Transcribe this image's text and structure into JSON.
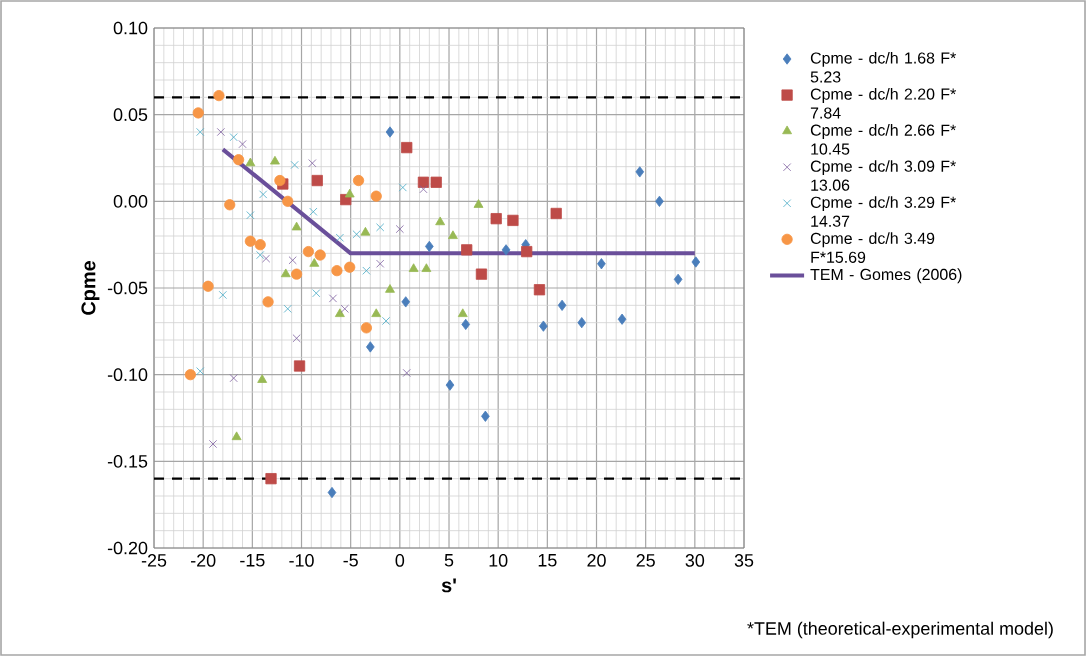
{
  "chart_data": {
    "type": "scatter",
    "xlabel": "s'",
    "ylabel": "Cpme",
    "xlim": [
      -25,
      35
    ],
    "ylim": [
      -0.2,
      0.1
    ],
    "xticks": [
      -25,
      -20,
      -15,
      -10,
      -5,
      0,
      5,
      10,
      15,
      20,
      25,
      30,
      35
    ],
    "yticks": [
      {
        "value": -0.2,
        "label": "-0.20"
      },
      -0.15,
      {
        "value": -0.1,
        "label": "-0.10"
      },
      -0.05,
      {
        "value": 0,
        "label": "0.00"
      },
      0.05,
      {
        "value": 0.1,
        "label": "0.10"
      }
    ],
    "grid": true,
    "legend": "right",
    "annotations": [
      "*TEM (theoretical-experimental model)"
    ],
    "ref_lines": [
      {
        "axis": "y",
        "value": 0.06,
        "color": "#000000",
        "line_style": "dashed"
      },
      {
        "axis": "y",
        "value": -0.16,
        "color": "#000000",
        "line_style": "dashed"
      }
    ],
    "series": [
      {
        "name": "Cpme - dc/h 1.68 F* 5.23",
        "color": "#4a7ebb",
        "marker": "diamond",
        "x": [
          -1.0,
          3.0,
          0.6,
          -3.0,
          5.1,
          8.7,
          10.8,
          12.8,
          14.6,
          16.5,
          18.5,
          20.5,
          22.6,
          24.4,
          26.4,
          28.3,
          30.1,
          -6.9,
          6.7
        ],
        "values": [
          0.04,
          -0.026,
          -0.058,
          -0.084,
          -0.106,
          -0.124,
          -0.028,
          -0.025,
          -0.072,
          -0.06,
          -0.07,
          -0.036,
          -0.068,
          0.017,
          0.0,
          -0.045,
          -0.035,
          -0.168,
          -0.071
        ]
      },
      {
        "name": "Cpme - dc/h 2.20 F* 7.84",
        "color": "#be4b48",
        "marker": "square",
        "x": [
          -13.1,
          -10.2,
          -11.9,
          -8.4,
          -5.5,
          0.7,
          2.4,
          3.7,
          6.8,
          8.3,
          9.8,
          11.5,
          12.9,
          14.2,
          15.9
        ],
        "values": [
          -0.16,
          -0.095,
          0.01,
          0.012,
          0.001,
          0.031,
          0.011,
          0.011,
          -0.028,
          -0.042,
          -0.01,
          -0.011,
          -0.029,
          -0.051,
          -0.007
        ]
      },
      {
        "name": "Cpme - dc/h 2.66 F* 10.45",
        "color": "#98b954",
        "marker": "triangle",
        "x": [
          -15.2,
          -12.7,
          -10.5,
          -11.6,
          -14.0,
          -16.6,
          -8.7,
          -6.1,
          -5.1,
          8.0,
          4.1,
          5.4,
          1.4,
          2.7,
          -1.0,
          -2.4,
          6.4,
          -3.5
        ],
        "values": [
          0.022,
          0.023,
          -0.015,
          -0.042,
          -0.103,
          -0.136,
          -0.036,
          -0.065,
          0.004,
          -0.002,
          -0.012,
          -0.02,
          -0.039,
          -0.039,
          -0.051,
          -0.065,
          -0.065,
          -0.018
        ]
      },
      {
        "name": "Cpme - dc/h 3.09 F* 13.06",
        "color": "#7d5fa0",
        "marker": "cross",
        "x": [
          -18.2,
          -16.0,
          -8.9,
          -13.6,
          -10.9,
          -6.8,
          -5.6,
          -10.5,
          -16.9,
          -19.0,
          2.4,
          0.0,
          0.7,
          -2.0
        ],
        "values": [
          0.04,
          0.033,
          0.022,
          -0.033,
          -0.034,
          -0.056,
          -0.062,
          -0.079,
          -0.102,
          -0.14,
          0.007,
          -0.016,
          -0.099,
          -0.036
        ]
      },
      {
        "name": "Cpme - dc/h 3.29 F* 14.37",
        "color": "#46aac5",
        "marker": "cross",
        "x": [
          -20.3,
          -18.0,
          -20.3,
          -16.9,
          -15.2,
          -13.9,
          -10.7,
          -11.4,
          -14.2,
          -8.5,
          -8.8,
          -6.1,
          -4.4,
          0.3,
          -2.0,
          -3.4,
          -1.4
        ],
        "values": [
          -0.098,
          -0.054,
          0.04,
          0.037,
          -0.008,
          0.004,
          0.021,
          -0.062,
          -0.031,
          -0.053,
          -0.006,
          -0.021,
          -0.019,
          0.008,
          -0.015,
          -0.04,
          -0.069
        ]
      },
      {
        "name": "Cpme - dc/h 3.49 F*15.69",
        "color": "#f79646",
        "marker": "circle",
        "x": [
          -18.4,
          -20.5,
          -16.4,
          -17.3,
          -12.2,
          -11.4,
          -4.2,
          -2.4,
          -15.2,
          -14.2,
          -9.3,
          -8.1,
          -10.5,
          -13.4,
          -19.5,
          -6.4,
          -5.1,
          -3.4,
          -21.3
        ],
        "values": [
          0.061,
          0.051,
          0.024,
          -0.002,
          0.012,
          0.0,
          0.012,
          0.003,
          -0.023,
          -0.025,
          -0.029,
          -0.031,
          -0.042,
          -0.058,
          -0.049,
          -0.04,
          -0.038,
          -0.073,
          -0.1
        ]
      },
      {
        "name": "TEM - Gomes (2006)",
        "type": "line",
        "color": "#6a4f9a",
        "marker": "none",
        "x": [
          -18,
          -5,
          30
        ],
        "values": [
          0.03,
          -0.03,
          -0.03
        ]
      }
    ]
  }
}
